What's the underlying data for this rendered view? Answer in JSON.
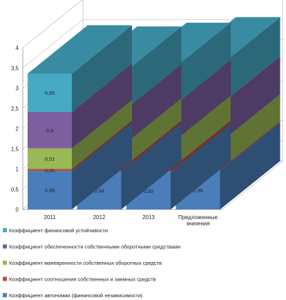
{
  "chart_data": {
    "type": "bar",
    "stacked": true,
    "three_d": true,
    "categories": [
      "2011",
      "2012",
      "2013",
      "Предложенные значения"
    ],
    "series": [
      {
        "name": "Коэффициент автономии (финансовой независимости)",
        "values": [
          0.95,
          0.94,
          0.92,
          0.96
        ],
        "color": "#4a7ebb"
      },
      {
        "name": "Коэффициент соотношения собственных и заемных средств",
        "values": [
          0.05,
          0.06,
          0.08,
          0.03
        ],
        "color": "#be4b48"
      },
      {
        "name": "Коэффициент маневренности собственных оборотных средств",
        "values": [
          0.51,
          0.55,
          0.62,
          0.66
        ],
        "color": "#98b954"
      },
      {
        "name": "Коэффициент обеспеченности собственными оборотными средствами",
        "values": [
          0.9,
          0.84,
          0.88,
          0.94
        ],
        "color": "#7d5fa0"
      },
      {
        "name": "Коэффициент финансовой устойчивости",
        "values": [
          0.95,
          0.94,
          0.92,
          0.97
        ],
        "color": "#46aac5"
      }
    ],
    "y_ticks": [
      "0",
      "0,5",
      "1",
      "1,5",
      "2",
      "2,5",
      "3",
      "3,5",
      "4"
    ],
    "ylim": [
      0,
      4
    ],
    "grid": true,
    "legend_position": "bottom",
    "title": "",
    "xlabel": "",
    "ylabel": ""
  }
}
